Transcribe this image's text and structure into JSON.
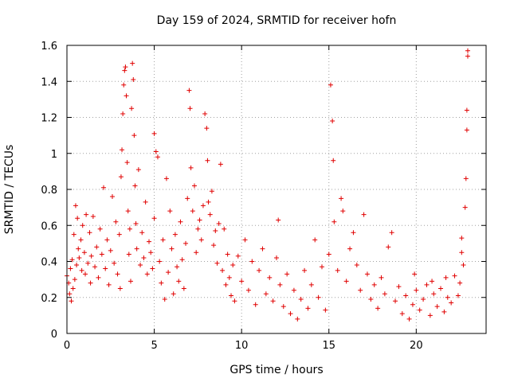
{
  "chart_data": {
    "type": "scatter",
    "title": "Day 159 of 2024, SRMTID for receiver hofn",
    "xlabel": "GPS time / hours",
    "ylabel": "SRMTID / TECUs",
    "xlim": [
      0,
      24
    ],
    "ylim": [
      0,
      1.6
    ],
    "xticks": [
      0,
      5,
      10,
      15,
      20
    ],
    "xtick_labels": [
      "0",
      "5",
      "10",
      "15",
      "20"
    ],
    "yticks": [
      0,
      0.2,
      0.4,
      0.6,
      0.8,
      1.0,
      1.2,
      1.4,
      1.6
    ],
    "ytick_labels": [
      "0",
      "0.2",
      "0.4",
      "0.6",
      "0.8",
      "1",
      "1.2",
      "1.4",
      "1.6"
    ],
    "grid": true,
    "marker": "+",
    "color": "#e00000",
    "series": [
      {
        "name": "hofn",
        "points": [
          [
            0.0,
            0.32
          ],
          [
            0.1,
            0.28
          ],
          [
            0.15,
            0.22
          ],
          [
            0.2,
            0.36
          ],
          [
            0.25,
            0.18
          ],
          [
            0.3,
            0.41
          ],
          [
            0.35,
            0.25
          ],
          [
            0.4,
            0.55
          ],
          [
            0.45,
            0.3
          ],
          [
            0.5,
            0.71
          ],
          [
            0.55,
            0.38
          ],
          [
            0.6,
            0.64
          ],
          [
            0.65,
            0.47
          ],
          [
            0.7,
            0.42
          ],
          [
            0.8,
            0.52
          ],
          [
            0.85,
            0.35
          ],
          [
            0.9,
            0.6
          ],
          [
            1.0,
            0.45
          ],
          [
            1.05,
            0.33
          ],
          [
            1.1,
            0.66
          ],
          [
            1.2,
            0.39
          ],
          [
            1.3,
            0.56
          ],
          [
            1.35,
            0.28
          ],
          [
            1.4,
            0.43
          ],
          [
            1.5,
            0.65
          ],
          [
            1.6,
            0.37
          ],
          [
            1.7,
            0.48
          ],
          [
            1.8,
            0.31
          ],
          [
            1.9,
            0.58
          ],
          [
            2.0,
            0.44
          ],
          [
            2.1,
            0.81
          ],
          [
            2.2,
            0.36
          ],
          [
            2.3,
            0.52
          ],
          [
            2.4,
            0.27
          ],
          [
            2.5,
            0.46
          ],
          [
            2.6,
            0.76
          ],
          [
            2.7,
            0.39
          ],
          [
            2.8,
            0.62
          ],
          [
            2.9,
            0.33
          ],
          [
            3.0,
            0.55
          ],
          [
            3.05,
            0.25
          ],
          [
            3.1,
            0.87
          ],
          [
            3.15,
            1.02
          ],
          [
            3.2,
            1.22
          ],
          [
            3.25,
            1.38
          ],
          [
            3.3,
            1.46
          ],
          [
            3.35,
            1.48
          ],
          [
            3.4,
            1.32
          ],
          [
            3.45,
            0.95
          ],
          [
            3.5,
            0.68
          ],
          [
            3.55,
            0.44
          ],
          [
            3.6,
            0.58
          ],
          [
            3.65,
            0.29
          ],
          [
            3.7,
            1.25
          ],
          [
            3.75,
            1.5
          ],
          [
            3.8,
            1.41
          ],
          [
            3.85,
            1.1
          ],
          [
            3.9,
            0.82
          ],
          [
            3.95,
            0.61
          ],
          [
            4.0,
            0.47
          ],
          [
            4.1,
            0.91
          ],
          [
            4.2,
            0.38
          ],
          [
            4.3,
            0.56
          ],
          [
            4.4,
            0.42
          ],
          [
            4.5,
            0.73
          ],
          [
            4.6,
            0.33
          ],
          [
            4.7,
            0.51
          ],
          [
            4.8,
            0.45
          ],
          [
            4.9,
            0.36
          ],
          [
            5.0,
            0.64
          ],
          [
            5.0,
            1.11
          ],
          [
            5.1,
            1.01
          ],
          [
            5.2,
            0.98
          ],
          [
            5.3,
            0.4
          ],
          [
            5.4,
            0.28
          ],
          [
            5.5,
            0.52
          ],
          [
            5.6,
            0.19
          ],
          [
            5.7,
            0.86
          ],
          [
            5.8,
            0.34
          ],
          [
            5.9,
            0.68
          ],
          [
            6.0,
            0.47
          ],
          [
            6.1,
            0.22
          ],
          [
            6.2,
            0.55
          ],
          [
            6.3,
            0.37
          ],
          [
            6.4,
            0.29
          ],
          [
            6.5,
            0.62
          ],
          [
            6.6,
            0.41
          ],
          [
            6.7,
            0.25
          ],
          [
            6.8,
            0.5
          ],
          [
            6.9,
            0.75
          ],
          [
            7.0,
            1.35
          ],
          [
            7.05,
            1.25
          ],
          [
            7.1,
            0.92
          ],
          [
            7.2,
            0.68
          ],
          [
            7.3,
            0.82
          ],
          [
            7.4,
            0.45
          ],
          [
            7.5,
            0.58
          ],
          [
            7.6,
            0.63
          ],
          [
            7.7,
            0.52
          ],
          [
            7.8,
            0.71
          ],
          [
            7.9,
            1.22
          ],
          [
            8.0,
            1.14
          ],
          [
            8.05,
            0.96
          ],
          [
            8.1,
            0.73
          ],
          [
            8.2,
            0.66
          ],
          [
            8.3,
            0.79
          ],
          [
            8.4,
            0.49
          ],
          [
            8.5,
            0.57
          ],
          [
            8.6,
            0.39
          ],
          [
            8.7,
            0.61
          ],
          [
            8.8,
            0.94
          ],
          [
            8.9,
            0.35
          ],
          [
            9.0,
            0.58
          ],
          [
            9.1,
            0.27
          ],
          [
            9.2,
            0.44
          ],
          [
            9.3,
            0.31
          ],
          [
            9.4,
            0.21
          ],
          [
            9.5,
            0.38
          ],
          [
            9.6,
            0.18
          ],
          [
            9.8,
            0.43
          ],
          [
            10.0,
            0.29
          ],
          [
            10.2,
            0.52
          ],
          [
            10.4,
            0.24
          ],
          [
            10.6,
            0.4
          ],
          [
            10.8,
            0.16
          ],
          [
            11.0,
            0.35
          ],
          [
            11.2,
            0.47
          ],
          [
            11.4,
            0.22
          ],
          [
            11.6,
            0.31
          ],
          [
            11.8,
            0.18
          ],
          [
            12.0,
            0.42
          ],
          [
            12.1,
            0.63
          ],
          [
            12.2,
            0.27
          ],
          [
            12.4,
            0.15
          ],
          [
            12.6,
            0.33
          ],
          [
            12.8,
            0.11
          ],
          [
            13.0,
            0.24
          ],
          [
            13.2,
            0.08
          ],
          [
            13.4,
            0.19
          ],
          [
            13.6,
            0.35
          ],
          [
            13.8,
            0.14
          ],
          [
            14.0,
            0.27
          ],
          [
            14.2,
            0.52
          ],
          [
            14.4,
            0.2
          ],
          [
            14.6,
            0.37
          ],
          [
            14.8,
            0.13
          ],
          [
            15.0,
            0.44
          ],
          [
            15.1,
            1.38
          ],
          [
            15.2,
            1.18
          ],
          [
            15.25,
            0.96
          ],
          [
            15.3,
            0.62
          ],
          [
            15.5,
            0.35
          ],
          [
            15.7,
            0.75
          ],
          [
            15.8,
            0.68
          ],
          [
            16.0,
            0.29
          ],
          [
            16.2,
            0.47
          ],
          [
            16.4,
            0.56
          ],
          [
            16.6,
            0.38
          ],
          [
            16.8,
            0.24
          ],
          [
            17.0,
            0.66
          ],
          [
            17.2,
            0.33
          ],
          [
            17.4,
            0.19
          ],
          [
            17.6,
            0.27
          ],
          [
            17.8,
            0.14
          ],
          [
            18.0,
            0.31
          ],
          [
            18.2,
            0.22
          ],
          [
            18.4,
            0.48
          ],
          [
            18.6,
            0.56
          ],
          [
            18.8,
            0.18
          ],
          [
            19.0,
            0.26
          ],
          [
            19.2,
            0.11
          ],
          [
            19.4,
            0.21
          ],
          [
            19.6,
            0.08
          ],
          [
            19.8,
            0.16
          ],
          [
            20.0,
            0.24
          ],
          [
            20.2,
            0.13
          ],
          [
            20.4,
            0.19
          ],
          [
            20.6,
            0.27
          ],
          [
            20.8,
            0.1
          ],
          [
            21.0,
            0.22
          ],
          [
            21.2,
            0.15
          ],
          [
            21.4,
            0.25
          ],
          [
            21.6,
            0.12
          ],
          [
            21.8,
            0.2
          ],
          [
            22.0,
            0.17
          ],
          [
            22.2,
            0.32
          ],
          [
            22.4,
            0.21
          ],
          [
            22.6,
            0.45
          ],
          [
            22.7,
            0.38
          ],
          [
            22.8,
            0.7
          ],
          [
            22.85,
            0.86
          ],
          [
            22.9,
            1.13
          ],
          [
            22.9,
            1.24
          ],
          [
            22.95,
            1.54
          ],
          [
            22.95,
            1.57
          ],
          [
            22.6,
            0.53
          ],
          [
            22.5,
            0.28
          ],
          [
            21.7,
            0.31
          ],
          [
            20.9,
            0.29
          ],
          [
            19.9,
            0.33
          ]
        ]
      }
    ]
  }
}
